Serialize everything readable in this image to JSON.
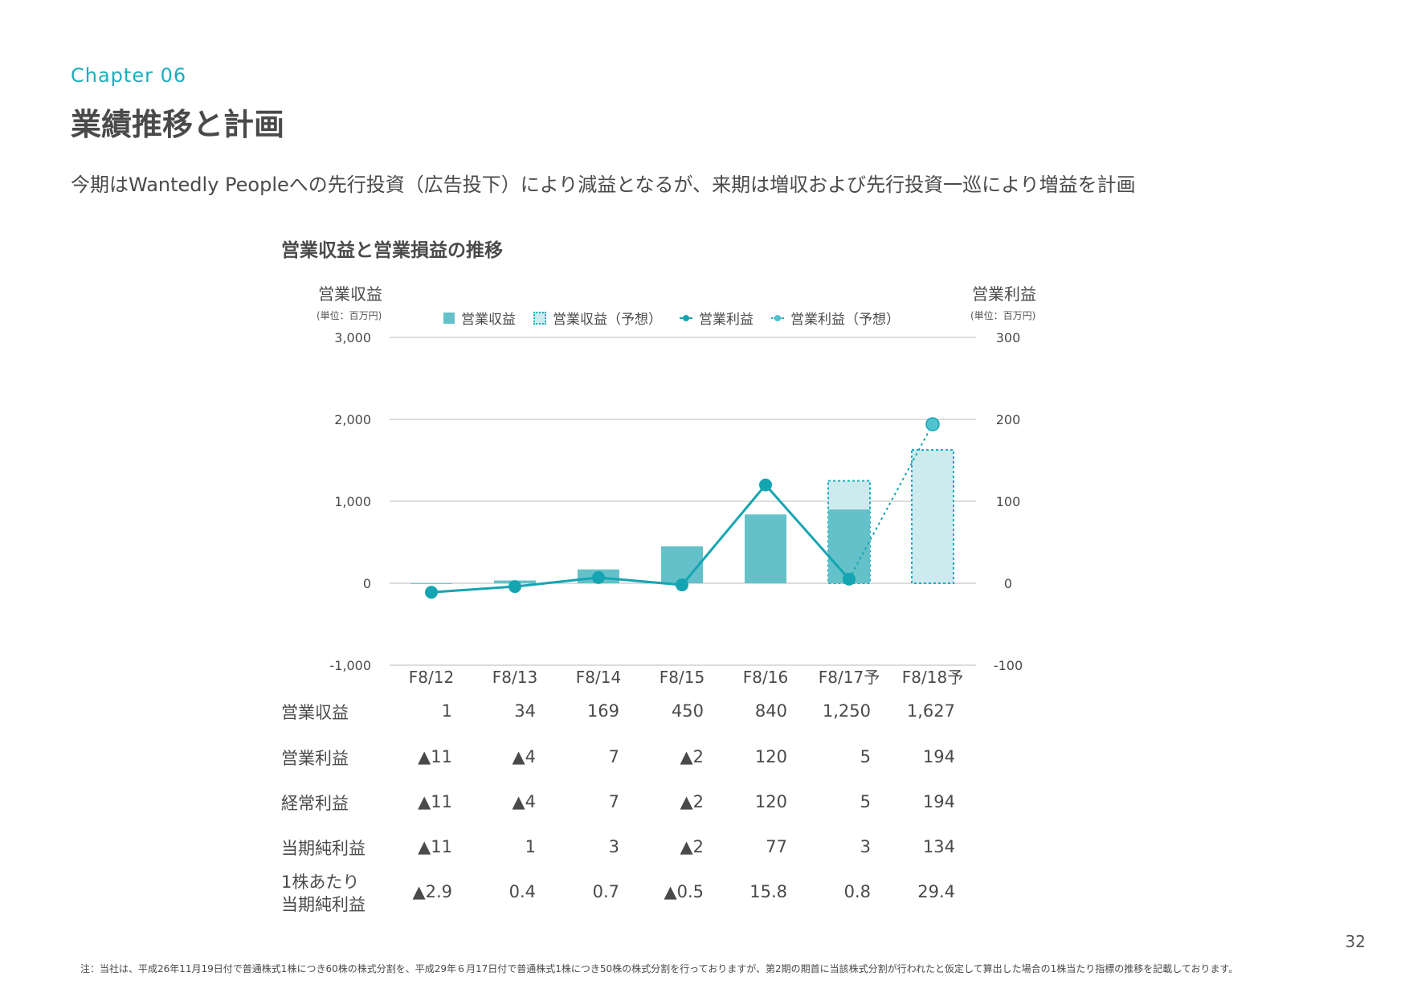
{
  "header": {
    "chapter": "Chapter 06",
    "title": "業績推移と計画",
    "lead": "今期はWantedly Peopleへの先行投資（広告投下）により減益となるが、来期は増収および先行投資一巡により増益を計画"
  },
  "chart_data": {
    "type": "bar",
    "title": "営業収益と営業損益の推移",
    "categories": [
      "F8/12",
      "F8/13",
      "F8/14",
      "F8/15",
      "F8/16",
      "F8/17予",
      "F8/18予"
    ],
    "y_left": {
      "label": "営業収益",
      "unit": "(単位：百万円)",
      "range": [
        -1000,
        3000
      ],
      "ticks": [
        "3,000",
        "2,000",
        "1,000",
        "0",
        "-1,000"
      ],
      "tick_values": [
        3000,
        2000,
        1000,
        0,
        -1000
      ]
    },
    "y_right": {
      "label": "営業利益",
      "unit": "(単位：百万円)",
      "range": [
        -100,
        300
      ],
      "ticks": [
        "300",
        "200",
        "100",
        "0",
        "-100"
      ],
      "tick_values": [
        300,
        200,
        100,
        0,
        -100
      ]
    },
    "grid": true,
    "legend": [
      "営業収益",
      "営業収益（予想）",
      "営業利益",
      "営業利益（予想）"
    ],
    "series": [
      {
        "name": "営業収益",
        "kind": "bar",
        "axis": "left",
        "values": [
          1,
          34,
          169,
          450,
          840,
          1250,
          1627
        ],
        "forecast_from_index": 5
      },
      {
        "name": "営業利益",
        "kind": "line",
        "axis": "right",
        "values": [
          -11,
          -4,
          7,
          -2,
          120,
          5,
          194
        ],
        "forecast_from_index": 6
      }
    ],
    "bar_partial_actual": {
      "index": 5,
      "value": 900
    }
  },
  "table": {
    "rows": [
      {
        "label": "営業収益",
        "values": [
          "1",
          "34",
          "169",
          "450",
          "840",
          "1,250",
          "1,627"
        ]
      },
      {
        "label": "営業利益",
        "values": [
          "▲11",
          "▲4",
          "7",
          "▲2",
          "120",
          "5",
          "194"
        ]
      },
      {
        "label": "経常利益",
        "values": [
          "▲11",
          "▲4",
          "7",
          "▲2",
          "120",
          "5",
          "194"
        ]
      },
      {
        "label": "当期純利益",
        "values": [
          "▲11",
          "1",
          "3",
          "▲2",
          "77",
          "3",
          "134"
        ]
      },
      {
        "label": "1株あたり\n当期純利益",
        "values": [
          "▲2.9",
          "0.4",
          "0.7",
          "▲0.5",
          "15.8",
          "0.8",
          "29.4"
        ]
      }
    ]
  },
  "colors": {
    "accent": "#1aaebd",
    "bar": "#64c1c9",
    "bar_forecast": "#cdeaee",
    "line": "#15a5b2",
    "grid": "#b9b9b9"
  },
  "page_number": "32",
  "footnote": "注：当社は、平成26年11月19日付で普通株式1株につき60株の株式分割を、平成29年６月17日付で普通株式1株につき50株の株式分割を行っておりますが、第2期の期首に当該株式分割が行われたと仮定して算出した場合の1株当たり指標の推移を記載しております。"
}
